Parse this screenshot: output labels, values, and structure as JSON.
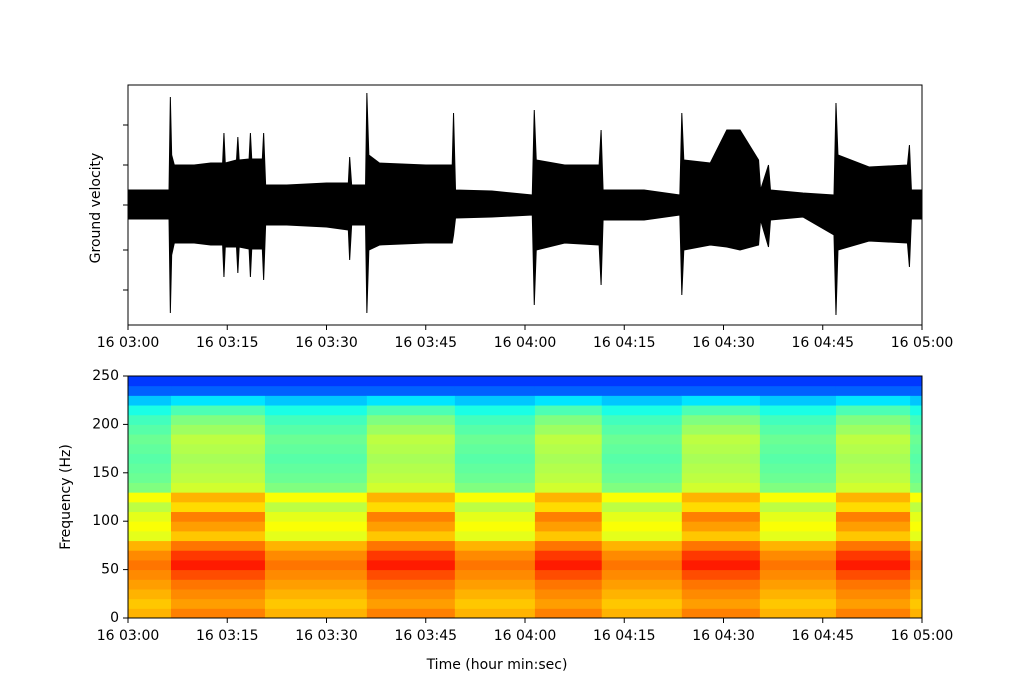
{
  "chart_data": [
    {
      "type": "range-area",
      "ylabel": "Ground velocity",
      "color": "#000000",
      "x": [
        0,
        6.2,
        6.4,
        6.6,
        7,
        10,
        12.5,
        14.3,
        14.5,
        14.7,
        16.4,
        16.6,
        16.8,
        18.3,
        18.5,
        18.7,
        20.3,
        20.5,
        20.8,
        24,
        30,
        33.3,
        33.5,
        33.8,
        35.9,
        36.1,
        36.4,
        38,
        45,
        49,
        49.2,
        49.5,
        55,
        61.1,
        61.4,
        61.7,
        66,
        71.2,
        71.5,
        71.8,
        78,
        83.4,
        83.7,
        84,
        88,
        90.5,
        92.5,
        95.3,
        95.6,
        96.8,
        97.1,
        102,
        106.7,
        107,
        107.3,
        112,
        117.8,
        118.1,
        118.4,
        120
      ],
      "y_upper": [
        0.15,
        0.15,
        1.08,
        0.5,
        0.4,
        0.4,
        0.42,
        0.42,
        0.72,
        0.42,
        0.45,
        0.68,
        0.45,
        0.46,
        0.72,
        0.46,
        0.46,
        0.72,
        0.2,
        0.2,
        0.22,
        0.22,
        0.48,
        0.2,
        0.2,
        1.12,
        0.5,
        0.42,
        0.4,
        0.4,
        0.92,
        0.15,
        0.14,
        0.1,
        0.95,
        0.45,
        0.4,
        0.4,
        0.75,
        0.15,
        0.15,
        0.1,
        0.92,
        0.45,
        0.42,
        0.75,
        0.75,
        0.45,
        0.15,
        0.4,
        0.15,
        0.12,
        0.1,
        1.02,
        0.5,
        0.38,
        0.4,
        0.6,
        0.15,
        0.15
      ],
      "y_lower": [
        -0.14,
        -0.14,
        -1.08,
        -0.5,
        -0.38,
        -0.38,
        -0.4,
        -0.4,
        -0.72,
        -0.42,
        -0.42,
        -0.68,
        -0.42,
        -0.44,
        -0.72,
        -0.44,
        -0.44,
        -0.75,
        -0.2,
        -0.2,
        -0.22,
        -0.25,
        -0.55,
        -0.2,
        -0.2,
        -1.08,
        -0.45,
        -0.4,
        -0.38,
        -0.38,
        -0.3,
        -0.13,
        -0.12,
        -0.1,
        -1.0,
        -0.45,
        -0.38,
        -0.4,
        -0.8,
        -0.15,
        -0.15,
        -0.1,
        -0.9,
        -0.45,
        -0.4,
        -0.42,
        -0.45,
        -0.4,
        -0.15,
        -0.42,
        -0.15,
        -0.12,
        -0.3,
        -1.1,
        -0.45,
        -0.36,
        -0.38,
        -0.62,
        -0.14,
        -0.14
      ],
      "xlim": [
        0,
        120
      ],
      "ylim": [
        -1.2,
        1.2
      ],
      "yticks": [
        -0.85,
        -0.45,
        0,
        0.4,
        0.8
      ],
      "xticks": [
        {
          "value": 0,
          "label": "16 03:00"
        },
        {
          "value": 15,
          "label": "16 03:15"
        },
        {
          "value": 30,
          "label": "16 03:30"
        },
        {
          "value": 45,
          "label": "16 03:45"
        },
        {
          "value": 60,
          "label": "16 04:00"
        },
        {
          "value": 75,
          "label": "16 04:15"
        },
        {
          "value": 90,
          "label": "16 04:30"
        },
        {
          "value": 105,
          "label": "16 04:45"
        },
        {
          "value": 120,
          "label": "16 05:00"
        }
      ]
    },
    {
      "type": "heatmap",
      "xlabel": "Time (hour min:sec)",
      "ylabel": "Frequency (Hz)",
      "colormap": "jet",
      "x_edges": [
        0,
        6.5,
        20.7,
        36.1,
        49.4,
        61.5,
        71.6,
        83.7,
        95.5,
        107,
        118.2,
        120
      ],
      "y_edges": [
        0,
        10,
        20,
        30,
        40,
        50,
        60,
        70,
        80,
        90,
        100,
        110,
        120,
        130,
        140,
        150,
        160,
        170,
        180,
        190,
        200,
        210,
        220,
        230,
        240,
        250
      ],
      "z": [
        [
          0.7,
          0.68,
          0.7,
          0.72,
          0.74,
          0.76,
          0.74,
          0.7,
          0.6,
          0.62,
          0.6,
          0.56,
          0.62,
          0.5,
          0.48,
          0.47,
          0.46,
          0.47,
          0.48,
          0.46,
          0.44,
          0.4,
          0.32,
          0.22,
          0.18
        ],
        [
          0.75,
          0.72,
          0.74,
          0.76,
          0.8,
          0.85,
          0.82,
          0.76,
          0.68,
          0.72,
          0.75,
          0.66,
          0.7,
          0.58,
          0.56,
          0.55,
          0.54,
          0.55,
          0.56,
          0.53,
          0.5,
          0.45,
          0.35,
          0.22,
          0.18
        ],
        [
          0.7,
          0.68,
          0.7,
          0.72,
          0.74,
          0.76,
          0.74,
          0.7,
          0.6,
          0.62,
          0.6,
          0.56,
          0.62,
          0.5,
          0.48,
          0.47,
          0.46,
          0.47,
          0.48,
          0.46,
          0.44,
          0.4,
          0.32,
          0.22,
          0.18
        ],
        [
          0.75,
          0.72,
          0.74,
          0.76,
          0.8,
          0.85,
          0.82,
          0.76,
          0.68,
          0.72,
          0.75,
          0.66,
          0.7,
          0.58,
          0.56,
          0.55,
          0.54,
          0.55,
          0.56,
          0.53,
          0.5,
          0.45,
          0.35,
          0.22,
          0.18
        ],
        [
          0.7,
          0.68,
          0.7,
          0.72,
          0.74,
          0.76,
          0.74,
          0.7,
          0.6,
          0.62,
          0.6,
          0.56,
          0.62,
          0.5,
          0.48,
          0.47,
          0.46,
          0.47,
          0.48,
          0.46,
          0.44,
          0.4,
          0.32,
          0.22,
          0.18
        ],
        [
          0.75,
          0.72,
          0.74,
          0.76,
          0.8,
          0.85,
          0.82,
          0.76,
          0.68,
          0.72,
          0.75,
          0.66,
          0.7,
          0.58,
          0.56,
          0.55,
          0.54,
          0.55,
          0.56,
          0.53,
          0.5,
          0.45,
          0.35,
          0.22,
          0.18
        ],
        [
          0.7,
          0.68,
          0.7,
          0.72,
          0.74,
          0.76,
          0.74,
          0.7,
          0.6,
          0.62,
          0.6,
          0.56,
          0.62,
          0.5,
          0.48,
          0.47,
          0.46,
          0.47,
          0.48,
          0.46,
          0.44,
          0.4,
          0.32,
          0.22,
          0.18
        ],
        [
          0.75,
          0.72,
          0.74,
          0.76,
          0.8,
          0.85,
          0.82,
          0.76,
          0.68,
          0.72,
          0.75,
          0.66,
          0.7,
          0.58,
          0.56,
          0.55,
          0.54,
          0.55,
          0.56,
          0.53,
          0.5,
          0.45,
          0.35,
          0.22,
          0.18
        ],
        [
          0.7,
          0.68,
          0.7,
          0.72,
          0.74,
          0.76,
          0.74,
          0.7,
          0.6,
          0.62,
          0.6,
          0.56,
          0.62,
          0.5,
          0.48,
          0.47,
          0.46,
          0.47,
          0.48,
          0.46,
          0.44,
          0.4,
          0.32,
          0.22,
          0.18
        ],
        [
          0.75,
          0.72,
          0.74,
          0.76,
          0.8,
          0.85,
          0.82,
          0.76,
          0.68,
          0.72,
          0.75,
          0.66,
          0.7,
          0.58,
          0.56,
          0.55,
          0.54,
          0.55,
          0.56,
          0.53,
          0.5,
          0.45,
          0.35,
          0.22,
          0.18
        ],
        [
          0.7,
          0.68,
          0.7,
          0.72,
          0.74,
          0.76,
          0.74,
          0.7,
          0.6,
          0.62,
          0.6,
          0.56,
          0.62,
          0.5,
          0.48,
          0.47,
          0.46,
          0.47,
          0.48,
          0.46,
          0.44,
          0.4,
          0.32,
          0.22,
          0.18
        ]
      ],
      "xlim": [
        0,
        120
      ],
      "ylim": [
        0,
        250
      ],
      "yticks": [
        0,
        50,
        100,
        150,
        200,
        250
      ],
      "xticks": [
        {
          "value": 0,
          "label": "16 03:00"
        },
        {
          "value": 15,
          "label": "16 03:15"
        },
        {
          "value": 30,
          "label": "16 03:30"
        },
        {
          "value": 45,
          "label": "16 03:45"
        },
        {
          "value": 60,
          "label": "16 04:00"
        },
        {
          "value": 75,
          "label": "16 04:15"
        },
        {
          "value": 90,
          "label": "16 04:30"
        },
        {
          "value": 105,
          "label": "16 04:45"
        },
        {
          "value": 120,
          "label": "16 05:00"
        }
      ]
    }
  ]
}
